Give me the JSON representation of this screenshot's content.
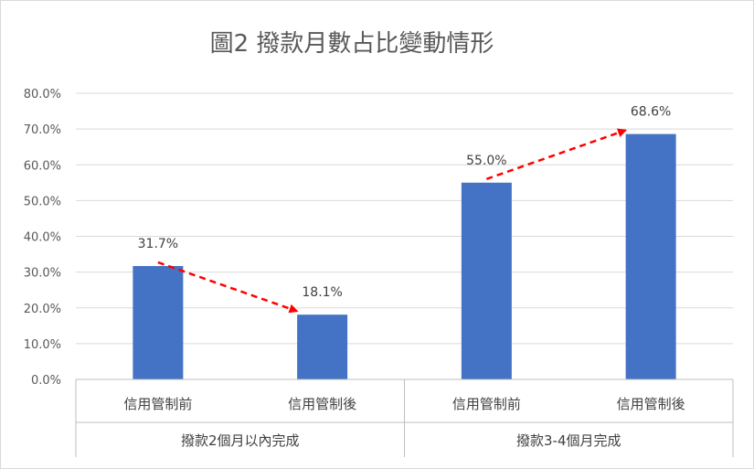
{
  "chart_data": {
    "type": "bar",
    "title": "圖2 撥款月數占比變動情形",
    "groups": [
      {
        "label": "撥款2個月以內完成",
        "categories": [
          "信用管制前",
          "信用管制後"
        ],
        "values": [
          31.7,
          18.1
        ],
        "labels": [
          "31.7%",
          "18.1%"
        ]
      },
      {
        "label": "撥款3-4個月完成",
        "categories": [
          "信用管制前",
          "信用管制後"
        ],
        "values": [
          55.0,
          68.6
        ],
        "labels": [
          "55.0%",
          "68.6%"
        ]
      }
    ],
    "yticks": [
      "0.0%",
      "10.0%",
      "20.0%",
      "30.0%",
      "40.0%",
      "50.0%",
      "60.0%",
      "70.0%",
      "80.0%"
    ],
    "ylim": [
      0,
      80
    ],
    "grid": true,
    "bar_color": "#4472c4",
    "arrow_color": "#ff0000"
  }
}
